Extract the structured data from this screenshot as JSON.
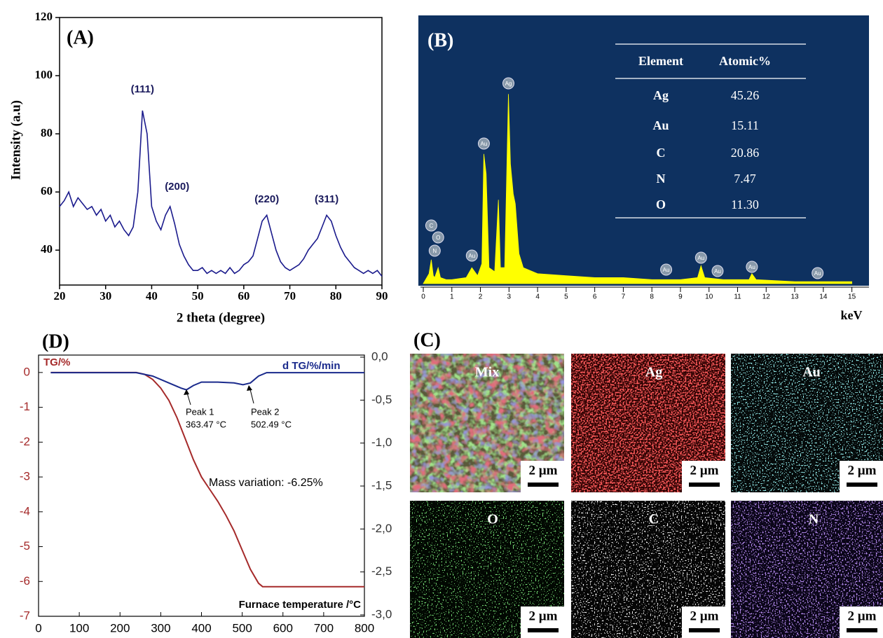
{
  "chart_data": [
    {
      "type": "line",
      "title": "(A)",
      "xlabel": "2 theta (degree)",
      "ylabel": "Intensity (a.u)",
      "x": [
        20,
        21,
        22,
        23,
        24,
        25,
        26,
        27,
        28,
        29,
        30,
        31,
        32,
        33,
        34,
        35,
        36,
        37,
        38,
        39,
        40,
        41,
        42,
        43,
        44,
        45,
        46,
        47,
        48,
        49,
        50,
        51,
        52,
        53,
        54,
        55,
        56,
        57,
        58,
        59,
        60,
        61,
        62,
        63,
        64,
        65,
        66,
        67,
        68,
        69,
        70,
        71,
        72,
        73,
        74,
        75,
        76,
        77,
        78,
        79,
        80,
        81,
        82,
        83,
        84,
        85,
        86,
        87,
        88,
        89,
        90
      ],
      "series": [
        {
          "color": "#1a1a8c",
          "values": [
            55,
            57,
            60,
            55,
            58,
            56,
            54,
            55,
            52,
            54,
            50,
            52,
            48,
            50,
            47,
            45,
            48,
            60,
            88,
            80,
            55,
            50,
            47,
            52,
            55,
            49,
            42,
            38,
            35,
            33,
            33,
            34,
            32,
            33,
            32,
            33,
            32,
            34,
            32,
            33,
            35,
            36,
            38,
            44,
            50,
            52,
            46,
            40,
            36,
            34,
            33,
            34,
            35,
            37,
            40,
            42,
            44,
            48,
            52,
            50,
            45,
            41,
            38,
            36,
            34,
            33,
            32,
            33,
            32,
            33,
            31
          ]
        }
      ],
      "xlim": [
        20,
        90
      ],
      "ylim": [
        28,
        120
      ],
      "xticks": [
        20,
        30,
        40,
        50,
        60,
        70,
        80,
        90
      ],
      "yticks": [
        40,
        60,
        80,
        100,
        120
      ],
      "annotations": [
        {
          "text": "(111)",
          "x": 38
        },
        {
          "text": "(200)",
          "x": 44
        },
        {
          "text": "(220)",
          "x": 65
        },
        {
          "text": "(311)",
          "x": 78
        }
      ]
    },
    {
      "type": "area",
      "title": "(B)",
      "xlabel": "keV",
      "x": [
        0,
        0.2,
        0.28,
        0.35,
        0.4,
        0.52,
        0.6,
        0.8,
        1.0,
        1.5,
        1.7,
        1.9,
        2.05,
        2.12,
        2.2,
        2.3,
        2.5,
        2.63,
        2.7,
        2.85,
        2.98,
        3.05,
        3.15,
        3.22,
        3.35,
        3.5,
        4,
        5,
        6,
        7,
        8,
        9,
        9.6,
        9.72,
        9.85,
        10.5,
        11.4,
        11.5,
        11.65,
        13,
        15
      ],
      "series": [
        {
          "color": "#ffff00",
          "values": [
            0,
            5,
            12,
            4,
            3,
            8,
            3,
            2,
            2,
            3,
            8,
            4,
            10,
            65,
            55,
            8,
            6,
            42,
            8,
            8,
            95,
            60,
            45,
            40,
            15,
            8,
            5,
            4,
            3,
            3,
            2,
            2,
            3,
            9,
            3,
            2,
            2,
            5,
            2,
            1,
            1
          ]
        }
      ],
      "xlim": [
        0,
        15.5
      ],
      "ylim": [
        0,
        100
      ],
      "xticks": [
        0,
        1,
        2,
        3,
        4,
        5,
        6,
        7,
        8,
        9,
        10,
        11,
        12,
        13,
        14,
        15
      ],
      "annotations": [
        {
          "text": "C",
          "x": 0.28
        },
        {
          "text": "O",
          "x": 0.52
        },
        {
          "text": "N",
          "x": 0.4
        },
        {
          "text": "Au",
          "x": 1.7
        },
        {
          "text": "Au",
          "x": 2.12
        },
        {
          "text": "Ag",
          "x": 2.98
        },
        {
          "text": "Au",
          "x": 8.5
        },
        {
          "text": "Au",
          "x": 9.72
        },
        {
          "text": "Au",
          "x": 10.3
        },
        {
          "text": "Au",
          "x": 11.5
        },
        {
          "text": "Au",
          "x": 13.8
        }
      ]
    },
    {
      "type": "line",
      "title": "(D)",
      "xlabel": "Furnace temperature /°C",
      "series": [
        {
          "name": "TG/%",
          "color": "#a52a2a",
          "x": [
            30,
            240,
            260,
            280,
            300,
            320,
            340,
            360,
            380,
            400,
            420,
            440,
            460,
            480,
            500,
            520,
            540,
            550,
            600,
            800
          ],
          "values": [
            0,
            0,
            -0.05,
            -0.2,
            -0.45,
            -0.8,
            -1.3,
            -1.9,
            -2.5,
            -3.0,
            -3.35,
            -3.7,
            -4.1,
            -4.55,
            -5.1,
            -5.65,
            -6.05,
            -6.15,
            -6.15,
            -6.15
          ]
        },
        {
          "name": "d TG/%/min",
          "color": "#1a2a8c",
          "axis": "y2",
          "x": [
            30,
            240,
            280,
            320,
            350,
            363,
            380,
            400,
            440,
            480,
            502,
            520,
            540,
            560,
            800
          ],
          "values": [
            -0.18,
            -0.18,
            -0.22,
            -0.3,
            -0.36,
            -0.38,
            -0.33,
            -0.29,
            -0.29,
            -0.3,
            -0.32,
            -0.3,
            -0.22,
            -0.18,
            -0.18
          ]
        }
      ],
      "xlim": [
        0,
        800
      ],
      "ylim": [
        -7,
        0.5
      ],
      "y2lim": [
        -3,
        0
      ],
      "xticks": [
        0,
        100,
        200,
        300,
        400,
        500,
        600,
        700,
        800
      ],
      "yticks": [
        0,
        -1,
        -2,
        -3,
        -4,
        -5,
        -6,
        -7
      ],
      "y2ticks": [
        {
          "value": 0,
          "label": "0,0"
        },
        {
          "value": -0.5,
          "label": "-0,5"
        },
        {
          "value": -1,
          "label": "-1,0"
        },
        {
          "value": -1.5,
          "label": "-1,5"
        },
        {
          "value": -2,
          "label": "-2,0"
        },
        {
          "value": -2.5,
          "label": "-2,5"
        },
        {
          "value": -3,
          "label": "-3,0"
        }
      ],
      "annotations": [
        {
          "text": "Peak 1"
        },
        {
          "text": "363.47 °C"
        },
        {
          "text": "Peak 2"
        },
        {
          "text": "502.49 °C"
        },
        {
          "text": "Mass variation: -6.25%"
        }
      ]
    }
  ],
  "eds_table": {
    "header": [
      "Element",
      "Atomic%"
    ],
    "rows": [
      [
        "Ag",
        "45.26"
      ],
      [
        "Au",
        "15.11"
      ],
      [
        "C",
        "20.86"
      ],
      [
        "N",
        "7.47"
      ],
      [
        "O",
        "11.30"
      ]
    ]
  },
  "mapping": {
    "title": "(C)",
    "panels": [
      {
        "label": "Mix",
        "scale": "2 µm"
      },
      {
        "label": "Ag",
        "scale": "2 µm"
      },
      {
        "label": "Au",
        "scale": "2 µm"
      },
      {
        "label": "O",
        "scale": "2 µm"
      },
      {
        "label": "C",
        "scale": "2 µm"
      },
      {
        "label": "N",
        "scale": "2 µm"
      }
    ]
  }
}
